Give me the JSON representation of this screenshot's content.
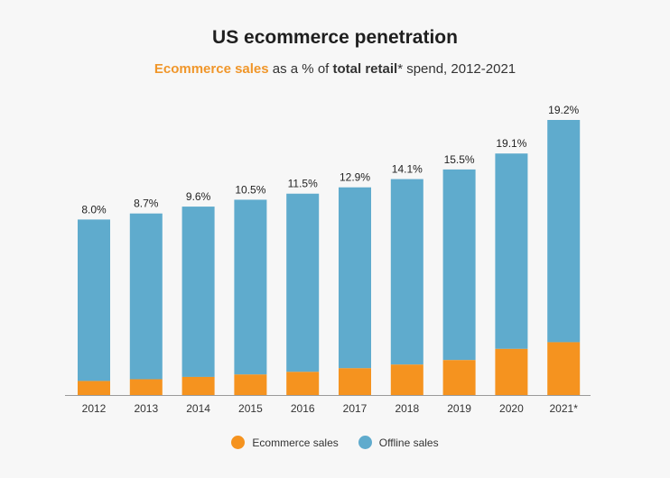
{
  "title": "US ecommerce penetration",
  "subtitle": {
    "part1": "Ecommerce sales",
    "part2": " as a % of ",
    "part3": "total retail",
    "part4": "* spend, 2012-2021"
  },
  "colors": {
    "ecommerce": "#f5931f",
    "offline": "#5fabcd",
    "ecommerce_text": "#f0962a"
  },
  "chart_data": {
    "type": "bar",
    "stacked": true,
    "categories": [
      "2012",
      "2013",
      "2014",
      "2015",
      "2016",
      "2017",
      "2018",
      "2019",
      "2020",
      "2021*"
    ],
    "series": [
      {
        "name": "Ecommerce sales",
        "values": [
          8.0,
          8.7,
          9.6,
          10.5,
          11.5,
          12.9,
          14.1,
          15.5,
          19.1,
          19.2
        ]
      },
      {
        "name": "Offline sales",
        "values": [
          92.0,
          91.3,
          90.4,
          89.5,
          88.5,
          87.1,
          85.9,
          84.5,
          80.9,
          80.8
        ]
      }
    ],
    "total_retail_relative": [
      0.638,
      0.66,
      0.685,
      0.71,
      0.732,
      0.755,
      0.785,
      0.82,
      0.878,
      1.0
    ],
    "data_labels": [
      "8.0%",
      "8.7%",
      "9.6%",
      "10.5%",
      "11.5%",
      "12.9%",
      "14.1%",
      "15.5%",
      "19.1%",
      "19.2%"
    ],
    "legend": [
      "Ecommerce sales",
      "Offline sales"
    ],
    "legend_position": "bottom",
    "grid": false
  }
}
